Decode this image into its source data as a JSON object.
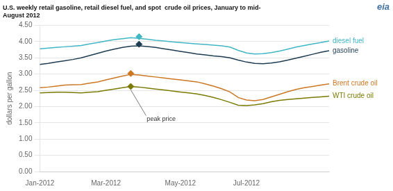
{
  "chart_data": {
    "type": "line",
    "title": [
      "U.S. weekly retail gasoline, retail diesel fuel, and spot  crude oil prices, January to mid-",
      "August 2012"
    ],
    "y_label": "dollars per gallon",
    "categories": [
      "Jan-2012",
      null,
      null,
      null,
      null,
      null,
      null,
      null,
      "Mar-2012",
      null,
      null,
      null,
      null,
      null,
      null,
      null,
      null,
      "May-2012",
      null,
      null,
      null,
      null,
      null,
      null,
      null,
      "Jul-2012",
      null,
      null,
      null,
      null,
      null,
      null,
      null,
      null,
      null,
      null
    ],
    "series": [
      {
        "name": "diesel fuel",
        "color": "#41b6c4",
        "values": [
          3.78,
          3.8,
          3.82,
          3.84,
          3.86,
          3.88,
          3.93,
          3.97,
          4.02,
          4.06,
          4.09,
          4.12,
          4.1,
          4.07,
          4.04,
          4.02,
          3.99,
          3.97,
          3.95,
          3.93,
          3.91,
          3.89,
          3.87,
          3.83,
          3.73,
          3.65,
          3.62,
          3.63,
          3.66,
          3.71,
          3.77,
          3.83,
          3.88,
          3.93,
          3.97,
          4.02
        ],
        "peak_values": [
          null,
          null,
          null,
          null,
          null,
          null,
          null,
          null,
          null,
          null,
          null,
          null,
          4.15,
          null,
          null,
          null,
          null,
          null,
          null,
          null,
          null,
          null,
          null,
          null,
          null,
          null,
          null,
          null,
          null,
          null,
          null,
          null,
          null,
          null,
          null,
          null
        ]
      },
      {
        "name": "gasoline",
        "color": "#1d3c52",
        "values": [
          3.3,
          3.33,
          3.37,
          3.41,
          3.45,
          3.5,
          3.57,
          3.64,
          3.71,
          3.77,
          3.82,
          3.86,
          3.87,
          3.85,
          3.82,
          3.78,
          3.74,
          3.7,
          3.66,
          3.62,
          3.59,
          3.56,
          3.54,
          3.5,
          3.43,
          3.37,
          3.33,
          3.32,
          3.34,
          3.38,
          3.43,
          3.49,
          3.55,
          3.61,
          3.67,
          3.72
        ],
        "peak_values": [
          null,
          null,
          null,
          null,
          null,
          null,
          null,
          null,
          null,
          null,
          null,
          null,
          3.92,
          null,
          null,
          null,
          null,
          null,
          null,
          null,
          null,
          null,
          null,
          null,
          null,
          null,
          null,
          null,
          null,
          null,
          null,
          null,
          null,
          null,
          null,
          null
        ]
      },
      {
        "name": "Brent crude oil",
        "color": "#cc7722",
        "values": [
          2.58,
          2.6,
          2.63,
          2.66,
          2.67,
          2.68,
          2.72,
          2.76,
          2.82,
          2.88,
          2.94,
          2.99,
          2.97,
          2.94,
          2.91,
          2.88,
          2.85,
          2.82,
          2.79,
          2.76,
          2.7,
          2.63,
          2.55,
          2.45,
          2.28,
          2.2,
          2.18,
          2.22,
          2.3,
          2.38,
          2.46,
          2.53,
          2.58,
          2.62,
          2.66,
          2.7
        ],
        "peak_values": [
          null,
          null,
          null,
          null,
          null,
          null,
          null,
          null,
          null,
          null,
          null,
          3.02,
          null,
          null,
          null,
          null,
          null,
          null,
          null,
          null,
          null,
          null,
          null,
          null,
          null,
          null,
          null,
          null,
          null,
          null,
          null,
          null,
          null,
          null,
          null,
          null
        ]
      },
      {
        "name": "WTI crude oil",
        "color": "#7a7a00",
        "values": [
          2.42,
          2.43,
          2.44,
          2.44,
          2.43,
          2.42,
          2.44,
          2.46,
          2.5,
          2.54,
          2.58,
          2.62,
          2.6,
          2.57,
          2.54,
          2.51,
          2.48,
          2.45,
          2.42,
          2.39,
          2.34,
          2.28,
          2.21,
          2.13,
          2.04,
          2.03,
          2.05,
          2.09,
          2.15,
          2.19,
          2.22,
          2.24,
          2.26,
          2.28,
          2.3,
          2.32
        ],
        "peak_values": [
          null,
          null,
          null,
          null,
          null,
          null,
          null,
          null,
          null,
          null,
          null,
          2.62,
          null,
          null,
          null,
          null,
          null,
          null,
          null,
          null,
          null,
          null,
          null,
          null,
          null,
          null,
          null,
          null,
          null,
          null,
          null,
          null,
          null,
          null,
          null,
          null
        ]
      }
    ],
    "annotations": [
      {
        "text": "peak price",
        "index": 11,
        "value": 2.62
      },
      {
        "text": "eia"
      }
    ],
    "ylim": [
      0.0,
      4.5
    ],
    "yticks": [
      {
        "value": 0.0,
        "label": "0.00"
      },
      {
        "value": 0.5,
        "label": "0.50"
      },
      {
        "value": 1.0,
        "label": "1.00"
      },
      {
        "value": 1.5,
        "label": "1.50"
      },
      {
        "value": 2.0,
        "label": "2.00"
      },
      {
        "value": 2.5,
        "label": "2.50"
      },
      {
        "value": 3.0,
        "label": "3.00"
      },
      {
        "value": 3.5,
        "label": "3.50"
      },
      {
        "value": 4.0,
        "label": "4.00"
      },
      {
        "value": 4.5,
        "label": "4.50"
      }
    ],
    "grid": true,
    "marker": "diamond"
  }
}
